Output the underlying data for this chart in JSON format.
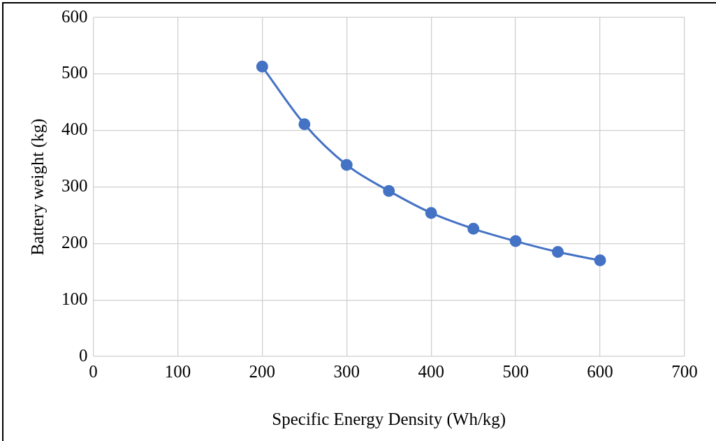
{
  "chart_data": {
    "type": "line",
    "xlabel": "Specific Energy Density (Wh/kg)",
    "ylabel": "Battery weight (kg)",
    "x": [
      200,
      250,
      300,
      350,
      400,
      450,
      500,
      550,
      600
    ],
    "series": [
      {
        "color": "#4472c4",
        "values": [
          513,
          411,
          339,
          293,
          254,
          226,
          204,
          185,
          170
        ]
      }
    ],
    "xlim": [
      0,
      700
    ],
    "xticks": [
      0,
      100,
      200,
      300,
      400,
      500,
      600,
      700
    ],
    "ylim": [
      0,
      600
    ],
    "yticks": [
      0,
      100,
      200,
      300,
      400,
      500,
      600
    ],
    "grid": true,
    "legend": false,
    "marker": "circle",
    "line_style": "solid"
  }
}
